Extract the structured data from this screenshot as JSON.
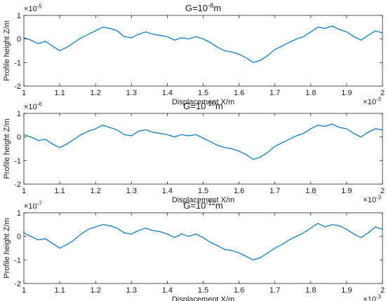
{
  "chart_data": [
    {
      "type": "line",
      "title": {
        "base": "G=10",
        "exp": "-8",
        "unit": "m"
      },
      "xlabel": "Displacement  X/m",
      "ylabel": "Profile height  Z/m",
      "x_multiplier": {
        "base": "×10",
        "exp": "-3"
      },
      "y_multiplier": {
        "base": "×10",
        "exp": "-5"
      },
      "xlim": [
        1,
        2
      ],
      "ylim": [
        -2,
        1
      ],
      "xticks": [
        "1",
        "1.1",
        "1.2",
        "1.3",
        "1.4",
        "1.5",
        "1.6",
        "1.7",
        "1.8",
        "1.9",
        "2"
      ],
      "yticks": [
        "-2",
        "-1",
        "0",
        "1"
      ],
      "line_color": "#0072BD",
      "series": [
        {
          "x": [
            1.0,
            1.02,
            1.04,
            1.06,
            1.08,
            1.1,
            1.12,
            1.14,
            1.16,
            1.18,
            1.2,
            1.22,
            1.24,
            1.26,
            1.28,
            1.3,
            1.32,
            1.34,
            1.36,
            1.38,
            1.4,
            1.42,
            1.44,
            1.46,
            1.48,
            1.5,
            1.52,
            1.54,
            1.56,
            1.58,
            1.6,
            1.62,
            1.64,
            1.66,
            1.68,
            1.7,
            1.72,
            1.74,
            1.76,
            1.78,
            1.8,
            1.82,
            1.84,
            1.86,
            1.88,
            1.9,
            1.92,
            1.94,
            1.96,
            1.98,
            2.0
          ],
          "y": [
            0.05,
            -0.05,
            -0.2,
            -0.1,
            -0.3,
            -0.5,
            -0.35,
            -0.15,
            0.05,
            0.2,
            0.35,
            0.5,
            0.45,
            0.35,
            0.1,
            0.05,
            0.2,
            0.3,
            0.2,
            0.15,
            0.1,
            -0.05,
            0.05,
            0.0,
            0.1,
            0.0,
            -0.15,
            -0.35,
            -0.5,
            -0.55,
            -0.65,
            -0.8,
            -1.0,
            -0.9,
            -0.7,
            -0.45,
            -0.3,
            -0.15,
            0.0,
            0.1,
            0.3,
            0.5,
            0.45,
            0.55,
            0.4,
            0.3,
            0.1,
            -0.05,
            0.15,
            0.35,
            0.25
          ]
        }
      ]
    },
    {
      "type": "line",
      "title": {
        "base": "G=10",
        "exp": "-10",
        "unit": "m"
      },
      "xlabel": "Displacement  X/m",
      "ylabel": "Profile height  Z/m",
      "x_multiplier": {
        "base": "×10",
        "exp": "-3"
      },
      "y_multiplier": {
        "base": "×10",
        "exp": "-6"
      },
      "xlim": [
        1,
        2
      ],
      "ylim": [
        -2,
        1
      ],
      "xticks": [
        "1",
        "1.1",
        "1.2",
        "1.3",
        "1.4",
        "1.5",
        "1.6",
        "1.7",
        "1.8",
        "1.9",
        "2"
      ],
      "yticks": [
        "-2",
        "-1",
        "0",
        "1"
      ],
      "line_color": "#0072BD",
      "series": [
        {
          "x": [
            1.0,
            1.02,
            1.04,
            1.06,
            1.08,
            1.1,
            1.12,
            1.14,
            1.16,
            1.18,
            1.2,
            1.22,
            1.24,
            1.26,
            1.28,
            1.3,
            1.32,
            1.34,
            1.36,
            1.38,
            1.4,
            1.42,
            1.44,
            1.46,
            1.48,
            1.5,
            1.52,
            1.54,
            1.56,
            1.58,
            1.6,
            1.62,
            1.64,
            1.66,
            1.68,
            1.7,
            1.72,
            1.74,
            1.76,
            1.78,
            1.8,
            1.82,
            1.84,
            1.86,
            1.88,
            1.9,
            1.92,
            1.94,
            1.96,
            1.98,
            2.0
          ],
          "y": [
            0.1,
            0.0,
            -0.15,
            -0.1,
            -0.3,
            -0.45,
            -0.3,
            -0.1,
            0.1,
            0.25,
            0.35,
            0.5,
            0.4,
            0.3,
            0.1,
            0.05,
            0.25,
            0.3,
            0.2,
            0.15,
            0.1,
            0.0,
            0.1,
            0.05,
            0.1,
            -0.05,
            -0.2,
            -0.35,
            -0.45,
            -0.5,
            -0.6,
            -0.75,
            -0.95,
            -0.85,
            -0.65,
            -0.4,
            -0.25,
            -0.1,
            0.05,
            0.15,
            0.35,
            0.5,
            0.45,
            0.55,
            0.4,
            0.35,
            0.15,
            0.0,
            0.2,
            0.35,
            0.3
          ]
        }
      ]
    },
    {
      "type": "line",
      "title": {
        "base": "G=10",
        "exp": "-12",
        "unit": "m"
      },
      "xlabel": "Displacement  X/m",
      "ylabel": "Profile height  Z/m",
      "x_multiplier": {
        "base": "×10",
        "exp": "-3"
      },
      "y_multiplier": {
        "base": "×10",
        "exp": "-7"
      },
      "xlim": [
        1,
        2
      ],
      "ylim": [
        -2,
        1
      ],
      "xticks": [
        "1",
        "1.1",
        "1.2",
        "1.3",
        "1.4",
        "1.5",
        "1.6",
        "1.7",
        "1.8",
        "1.9",
        "2"
      ],
      "yticks": [
        "-2",
        "-1",
        "0",
        "1"
      ],
      "line_color": "#0072BD",
      "series": [
        {
          "x": [
            1.0,
            1.02,
            1.04,
            1.06,
            1.08,
            1.1,
            1.12,
            1.14,
            1.16,
            1.18,
            1.2,
            1.22,
            1.24,
            1.26,
            1.28,
            1.3,
            1.32,
            1.34,
            1.36,
            1.38,
            1.4,
            1.42,
            1.44,
            1.46,
            1.48,
            1.5,
            1.52,
            1.54,
            1.56,
            1.58,
            1.6,
            1.62,
            1.64,
            1.66,
            1.68,
            1.7,
            1.72,
            1.74,
            1.76,
            1.78,
            1.8,
            1.82,
            1.84,
            1.86,
            1.88,
            1.9,
            1.92,
            1.94,
            1.96,
            1.98,
            2.0
          ],
          "y": [
            0.15,
            0.0,
            -0.15,
            -0.1,
            -0.3,
            -0.5,
            -0.35,
            -0.15,
            0.1,
            0.3,
            0.4,
            0.5,
            0.45,
            0.35,
            0.15,
            0.1,
            0.25,
            0.35,
            0.25,
            0.2,
            0.1,
            -0.05,
            0.1,
            0.0,
            0.1,
            -0.05,
            -0.25,
            -0.4,
            -0.55,
            -0.6,
            -0.7,
            -0.85,
            -1.0,
            -0.9,
            -0.7,
            -0.5,
            -0.35,
            -0.15,
            0.0,
            0.15,
            0.35,
            0.55,
            0.4,
            0.5,
            0.45,
            0.3,
            0.1,
            -0.05,
            0.15,
            0.4,
            0.3
          ]
        }
      ]
    }
  ]
}
